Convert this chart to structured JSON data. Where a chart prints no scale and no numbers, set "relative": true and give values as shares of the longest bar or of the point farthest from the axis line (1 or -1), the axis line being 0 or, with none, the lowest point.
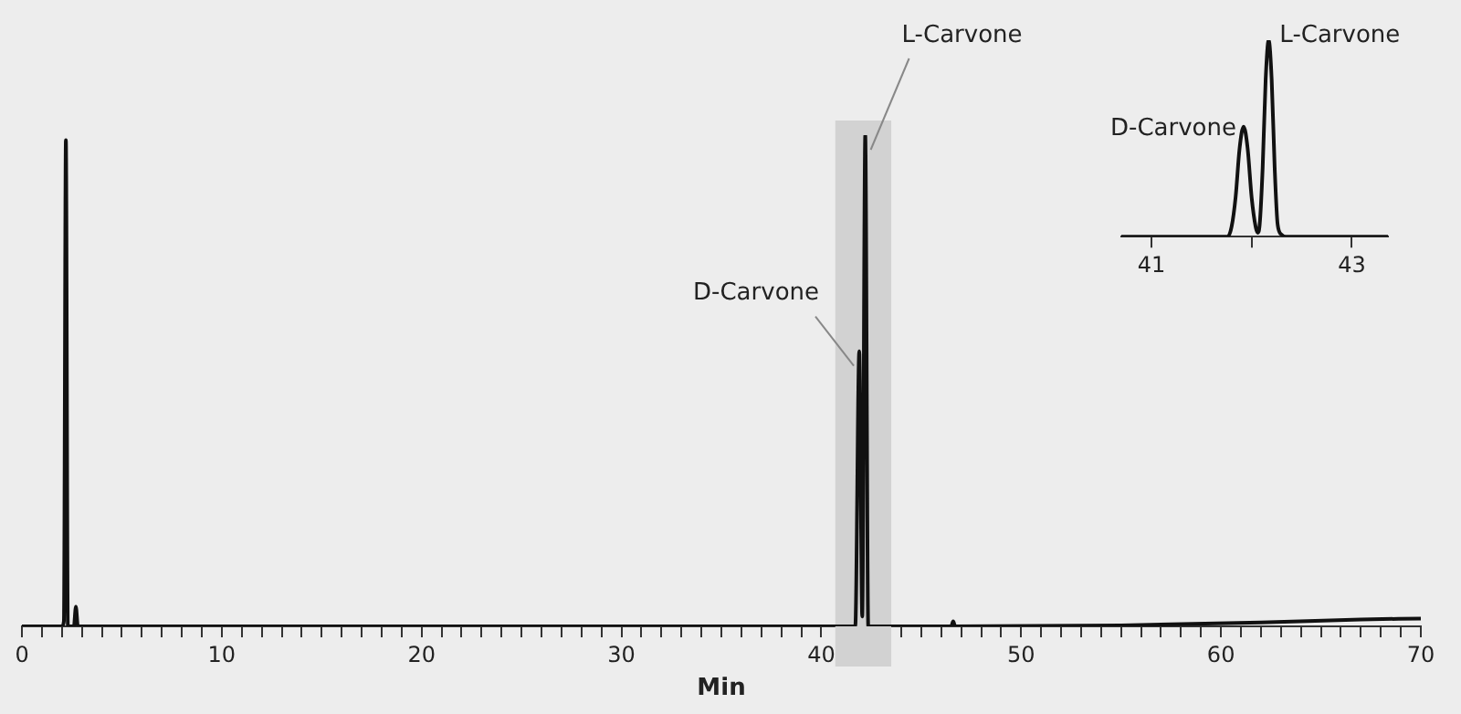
{
  "chart_data": [
    {
      "type": "line",
      "relative": true,
      "xlabel": "Min",
      "color": "#111111",
      "tick_labels": "x",
      "x": [
        0,
        2.0,
        2.1,
        2.2,
        2.3,
        2.6,
        2.7,
        2.8,
        41.7,
        41.9,
        42.05,
        42.2,
        42.35,
        46.5,
        46.6,
        46.7,
        55,
        62,
        67,
        70
      ],
      "values": [
        0,
        0,
        0.01,
        0.99,
        0,
        0,
        0.04,
        0,
        0,
        0.56,
        0.02,
        1,
        0,
        0,
        0.01,
        0,
        0.002,
        0.008,
        0.014,
        0.016
      ],
      "xlim": [
        0,
        70
      ],
      "xticks": [
        0,
        {
          "value": 1,
          "label": null
        },
        {
          "value": 2,
          "label": null
        },
        {
          "value": 3,
          "label": null
        },
        {
          "value": 4,
          "label": null
        },
        {
          "value": 5,
          "label": null
        },
        {
          "value": 6,
          "label": null
        },
        {
          "value": 7,
          "label": null
        },
        {
          "value": 8,
          "label": null
        },
        {
          "value": 9,
          "label": null
        },
        10,
        {
          "value": 11,
          "label": null
        },
        {
          "value": 12,
          "label": null
        },
        {
          "value": 13,
          "label": null
        },
        {
          "value": 14,
          "label": null
        },
        {
          "value": 15,
          "label": null
        },
        {
          "value": 16,
          "label": null
        },
        {
          "value": 17,
          "label": null
        },
        {
          "value": 18,
          "label": null
        },
        {
          "value": 19,
          "label": null
        },
        20,
        {
          "value": 21,
          "label": null
        },
        {
          "value": 22,
          "label": null
        },
        {
          "value": 23,
          "label": null
        },
        {
          "value": 24,
          "label": null
        },
        {
          "value": 25,
          "label": null
        },
        {
          "value": 26,
          "label": null
        },
        {
          "value": 27,
          "label": null
        },
        {
          "value": 28,
          "label": null
        },
        {
          "value": 29,
          "label": null
        },
        30,
        {
          "value": 31,
          "label": null
        },
        {
          "value": 32,
          "label": null
        },
        {
          "value": 33,
          "label": null
        },
        {
          "value": 34,
          "label": null
        },
        {
          "value": 35,
          "label": null
        },
        {
          "value": 36,
          "label": null
        },
        {
          "value": 37,
          "label": null
        },
        {
          "value": 38,
          "label": null
        },
        {
          "value": 39,
          "label": null
        },
        40,
        {
          "value": 41,
          "label": null
        },
        {
          "value": 42,
          "label": null
        },
        {
          "value": 43,
          "label": null
        },
        {
          "value": 44,
          "label": null
        },
        {
          "value": 45,
          "label": null
        },
        {
          "value": 46,
          "label": null
        },
        {
          "value": 47,
          "label": null
        },
        {
          "value": 48,
          "label": null
        },
        {
          "value": 49,
          "label": null
        },
        50,
        {
          "value": 51,
          "label": null
        },
        {
          "value": 52,
          "label": null
        },
        {
          "value": 53,
          "label": null
        },
        {
          "value": 54,
          "label": null
        },
        {
          "value": 55,
          "label": null
        },
        {
          "value": 56,
          "label": null
        },
        {
          "value": 57,
          "label": null
        },
        {
          "value": 58,
          "label": null
        },
        {
          "value": 59,
          "label": null
        },
        60,
        {
          "value": 61,
          "label": null
        },
        {
          "value": 62,
          "label": null
        },
        {
          "value": 63,
          "label": null
        },
        {
          "value": 64,
          "label": null
        },
        {
          "value": 65,
          "label": null
        },
        {
          "value": 66,
          "label": null
        },
        {
          "value": 67,
          "label": null
        },
        {
          "value": 68,
          "label": null
        },
        {
          "value": 69,
          "label": null
        },
        70
      ],
      "bands": [
        {
          "axis": "x",
          "from": 40.7,
          "to": 43.5,
          "color": "#d2d2d2"
        }
      ],
      "annotations": [
        {
          "text": "D-Carvone",
          "x": 41.9,
          "y": 0.56
        },
        {
          "text": "L-Carvone",
          "x": 42.2,
          "y": 1
        }
      ]
    },
    {
      "type": "line",
      "relative": true,
      "color": "#111111",
      "tick_labels": "x",
      "x": [
        40.7,
        41.76,
        41.8,
        41.84,
        41.88,
        41.92,
        41.96,
        42.0,
        42.04,
        42.06,
        42.08,
        42.11,
        42.14,
        42.17,
        42.2,
        42.23,
        42.26,
        42.3,
        42.34,
        43.36
      ],
      "values": [
        0,
        0,
        0.05,
        0.2,
        0.45,
        0.56,
        0.45,
        0.2,
        0.05,
        0.02,
        0.06,
        0.35,
        0.8,
        1,
        0.8,
        0.35,
        0.06,
        0.01,
        0,
        0
      ],
      "xlim": [
        40.7,
        43.36
      ],
      "xticks": [
        41,
        {
          "value": 42,
          "label": null
        },
        43
      ],
      "annotations": [
        {
          "text": "D-Carvone",
          "x": 41.92,
          "y": 0.56
        },
        {
          "text": "L-Carvone",
          "x": 42.17,
          "y": 1
        }
      ]
    }
  ]
}
